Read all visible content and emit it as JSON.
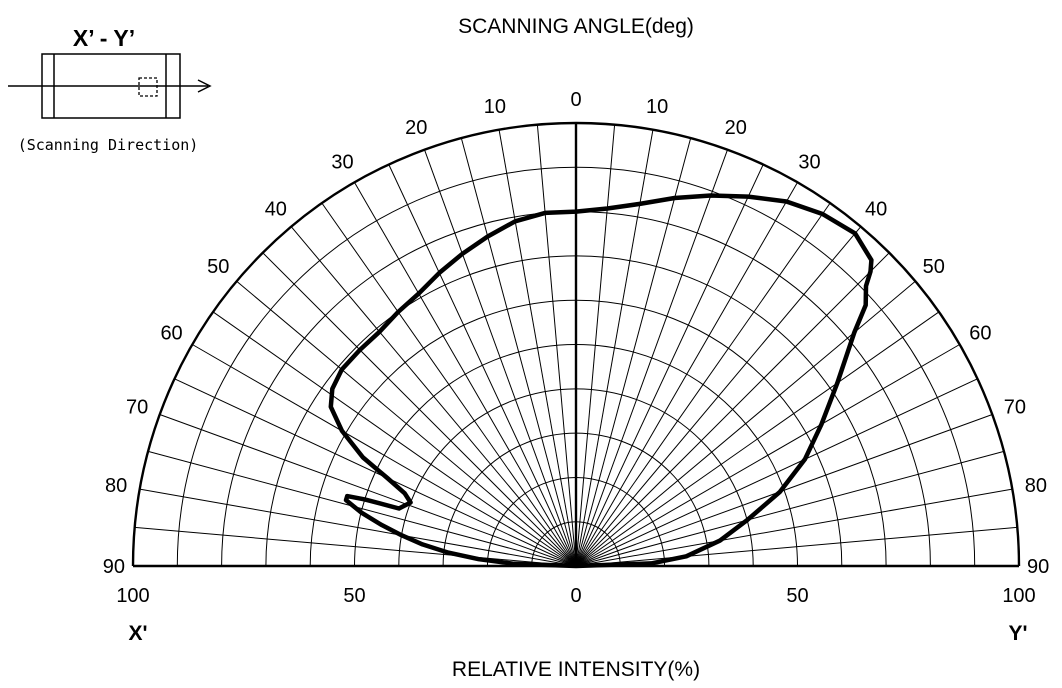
{
  "chart_data": {
    "type": "polar-line",
    "title": "SCANNING ANGLE(deg)",
    "xlabel": "RELATIVE INTENSITY(%)",
    "x_left_label": "X'",
    "x_right_label": "Y'",
    "angle_range": [
      -90,
      90
    ],
    "angle_ticks": [
      0,
      10,
      20,
      30,
      40,
      50,
      60,
      70,
      80,
      90
    ],
    "radial_range": [
      0,
      100
    ],
    "radial_tick_labels": [
      "100",
      "50",
      "0",
      "50",
      "100"
    ],
    "grid": true,
    "legend": "none",
    "series": [
      {
        "angles": [
          -88,
          -86,
          -84,
          -82,
          -80,
          -78,
          -76,
          -74,
          -73,
          -72.5,
          -72,
          -69,
          -67,
          -65,
          -63,
          -60,
          -57,
          -54,
          -50,
          -45,
          -40,
          -35,
          -30,
          -25,
          -20,
          -15,
          -10,
          -5,
          0,
          5,
          10,
          15,
          20,
          25,
          30,
          35,
          40,
          44,
          45,
          46,
          48,
          50,
          55,
          60,
          65,
          70,
          75,
          80,
          85,
          88
        ],
        "values": [
          14,
          22,
          29,
          35,
          40,
          45,
          50,
          54,
          54,
          50,
          42,
          40,
          42,
          47,
          54,
          61,
          66,
          68,
          69,
          69,
          69,
          70,
          71,
          73,
          75,
          77,
          79,
          80,
          80,
          81,
          83,
          86,
          89,
          92,
          95,
          97,
          98,
          96,
          94,
          91,
          88,
          82,
          72,
          64,
          57,
          49,
          40,
          33,
          25,
          17
        ],
        "color": "#000000"
      }
    ]
  },
  "inset": {
    "title": "X’ - Y’",
    "caption": "(Scanning Direction)"
  }
}
